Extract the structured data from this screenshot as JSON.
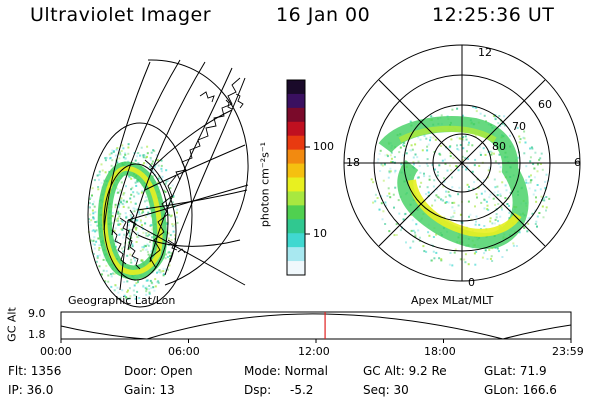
{
  "header": {
    "instrument": "Ultraviolet Imager",
    "date": "16 Jan 00",
    "time": "12:25:36 UT"
  },
  "colorbar": {
    "unit_label": "photon cm⁻²s⁻¹",
    "ticks": [
      "100",
      "10"
    ],
    "colors": [
      "#1a0a2a",
      "#3a1060",
      "#7a0a2a",
      "#c01020",
      "#e83a10",
      "#f28a10",
      "#f5c010",
      "#e8f020",
      "#a8e840",
      "#50d050",
      "#30c890",
      "#40d8d0",
      "#a8e8f0",
      "#f0f8fc"
    ]
  },
  "left_panel": {
    "caption": "Geographic Lat/Lon"
  },
  "right_panel": {
    "caption": "Apex MLat/MLT",
    "mlt_labels": {
      "top": "12",
      "left": "18",
      "right": "6",
      "bottom": "0"
    },
    "lat_labels": [
      "60",
      "70",
      "80"
    ]
  },
  "orbit_plot": {
    "y_axis_label": "GC Alt",
    "y_ticks": [
      "9.0",
      "1.8"
    ],
    "x_ticks": [
      "00:00",
      "06:00",
      "12:00",
      "18:00",
      "23:59"
    ],
    "current_time_fraction": 0.5178,
    "marker_color": "#e02020"
  },
  "info": {
    "flt": "Flt: 1356",
    "ip": "IP: 36.0",
    "door": "Door: Open",
    "gain": "Gain: 13",
    "mode": "Mode: Normal",
    "dsp_label": "Dsp:",
    "dsp_value": "-5.2",
    "gcalt": "GC Alt: 9.2 Re",
    "seq": "Seq: 30",
    "glat": "GLat:  71.9",
    "glon": "GLon: 166.6"
  }
}
